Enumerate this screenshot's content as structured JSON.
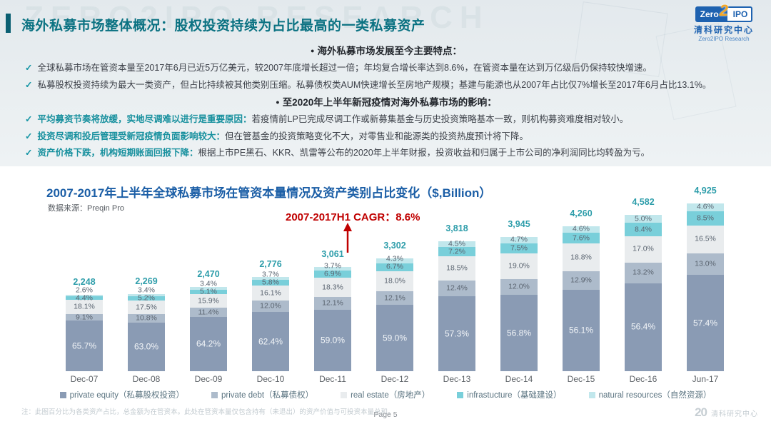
{
  "header": {
    "title": "海外私募市场整体概况：股权投资持续为占比最高的一类私募资产",
    "watermark": "ZERO2IPO RESEARCH",
    "logo": {
      "zero": "Zero",
      "two": "2",
      "ipo": "IPO",
      "cn": "清科研究中心",
      "en": "Zero2IPO Research"
    }
  },
  "icons": {
    "bullet": "●",
    "check": "✓"
  },
  "bullets": {
    "items": [
      {
        "type": "heading",
        "lead": "",
        "text": "海外私募市场发展至今主要特点："
      },
      {
        "type": "check",
        "lead": "",
        "text": "全球私募市场在管资本量至2017年6月已近5万亿美元，较2007年底增长超过一倍；年均复合增长率达到8.6%，在管资本量在达到万亿级后仍保持较快增速。"
      },
      {
        "type": "check",
        "lead": "",
        "text": "私募股权投资持续为最大一类资产，但占比持续被其他类别压缩。私募债权类AUM快速增长至房地产规模；基建与能源也从2007年占比仅7%增长至2017年6月占比13.1%。"
      },
      {
        "type": "heading",
        "lead": "",
        "text": "至2020年上半年新冠疫情对海外私募市场的影响："
      },
      {
        "type": "check",
        "lead": "平均募资节奏将放缓，实地尽调难以进行是重要原因：",
        "text": "若疫情前LP已完成尽调工作或新募集基金与历史投资策略基本一致，则机构募资难度相对较小。"
      },
      {
        "type": "check",
        "lead": "投资尽调和投后管理受新冠疫情负面影响较大：",
        "text": "但在管基金的投资策略变化不大，对零售业和能源类的投资热度预计将下降。"
      },
      {
        "type": "check",
        "lead": "资产价格下跌，机构短期账面回报下降：",
        "text": "根据上市PE黑石、KKR、凯雷等公布的2020年上半年财报，投资收益和归属于上市公司的净利润同比均转盈为亏。"
      }
    ]
  },
  "chart_data": {
    "type": "bar",
    "stacked": true,
    "title": "2007-2017年上半年全球私募市场在管资本量情况及资产类别占比变化（$,Billion）",
    "source_label": "数据来源：Preqin Pro",
    "annotation": "2007-2017H1 CAGR：8.6%",
    "unit": "$,Billion",
    "legend_position": "bottom",
    "categories": [
      "Dec-07",
      "Dec-08",
      "Dec-09",
      "Dec-10",
      "Dec-11",
      "Dec-12",
      "Dec-13",
      "Dec-14",
      "Dec-15",
      "Dec-16",
      "Jun-17"
    ],
    "totals": [
      2248,
      2269,
      2470,
      2776,
      3061,
      3302,
      3818,
      3945,
      4260,
      4582,
      4925
    ],
    "total_labels": [
      "2,248",
      "2,269",
      "2,470",
      "2,776",
      "3,061",
      "3,302",
      "3,818",
      "3,945",
      "4,260",
      "4,582",
      "4,925"
    ],
    "value_format": "percent_of_total",
    "series": [
      {
        "name": "private equity（私募股权投资）",
        "color": "#8a9bb4",
        "values": [
          65.7,
          63.0,
          64.2,
          62.4,
          59.0,
          59.0,
          57.3,
          56.8,
          56.1,
          56.4,
          57.4
        ]
      },
      {
        "name": "private debt（私募债权）",
        "color": "#adbbcb",
        "values": [
          9.1,
          10.8,
          11.4,
          12.0,
          12.1,
          12.1,
          12.4,
          12.0,
          12.9,
          13.2,
          13.0
        ]
      },
      {
        "name": "real estate（房地产）",
        "color": "#e9ecee",
        "values": [
          18.1,
          17.5,
          15.9,
          16.1,
          18.3,
          18.0,
          18.5,
          19.0,
          18.8,
          17.0,
          16.5
        ]
      },
      {
        "name": "infrastucture（基础建设）",
        "color": "#79cfda",
        "values": [
          4.4,
          5.2,
          5.1,
          5.8,
          6.9,
          6.7,
          7.2,
          7.5,
          7.6,
          8.4,
          8.5
        ]
      },
      {
        "name": "natural resources（自然资源）",
        "color": "#c1e7ec",
        "values": [
          2.6,
          3.4,
          3.4,
          3.7,
          3.7,
          4.3,
          4.5,
          4.7,
          4.6,
          5.0,
          4.6
        ]
      }
    ]
  },
  "footer": {
    "note": "注：此图百分比为各类资产占比，总金额为在管资本。此处在管资本量仅包含持有（未退出）的资产价值与可投资本量总和。",
    "page": "Page  5",
    "brand_num": "20",
    "brand_text": "清科研究中心"
  }
}
